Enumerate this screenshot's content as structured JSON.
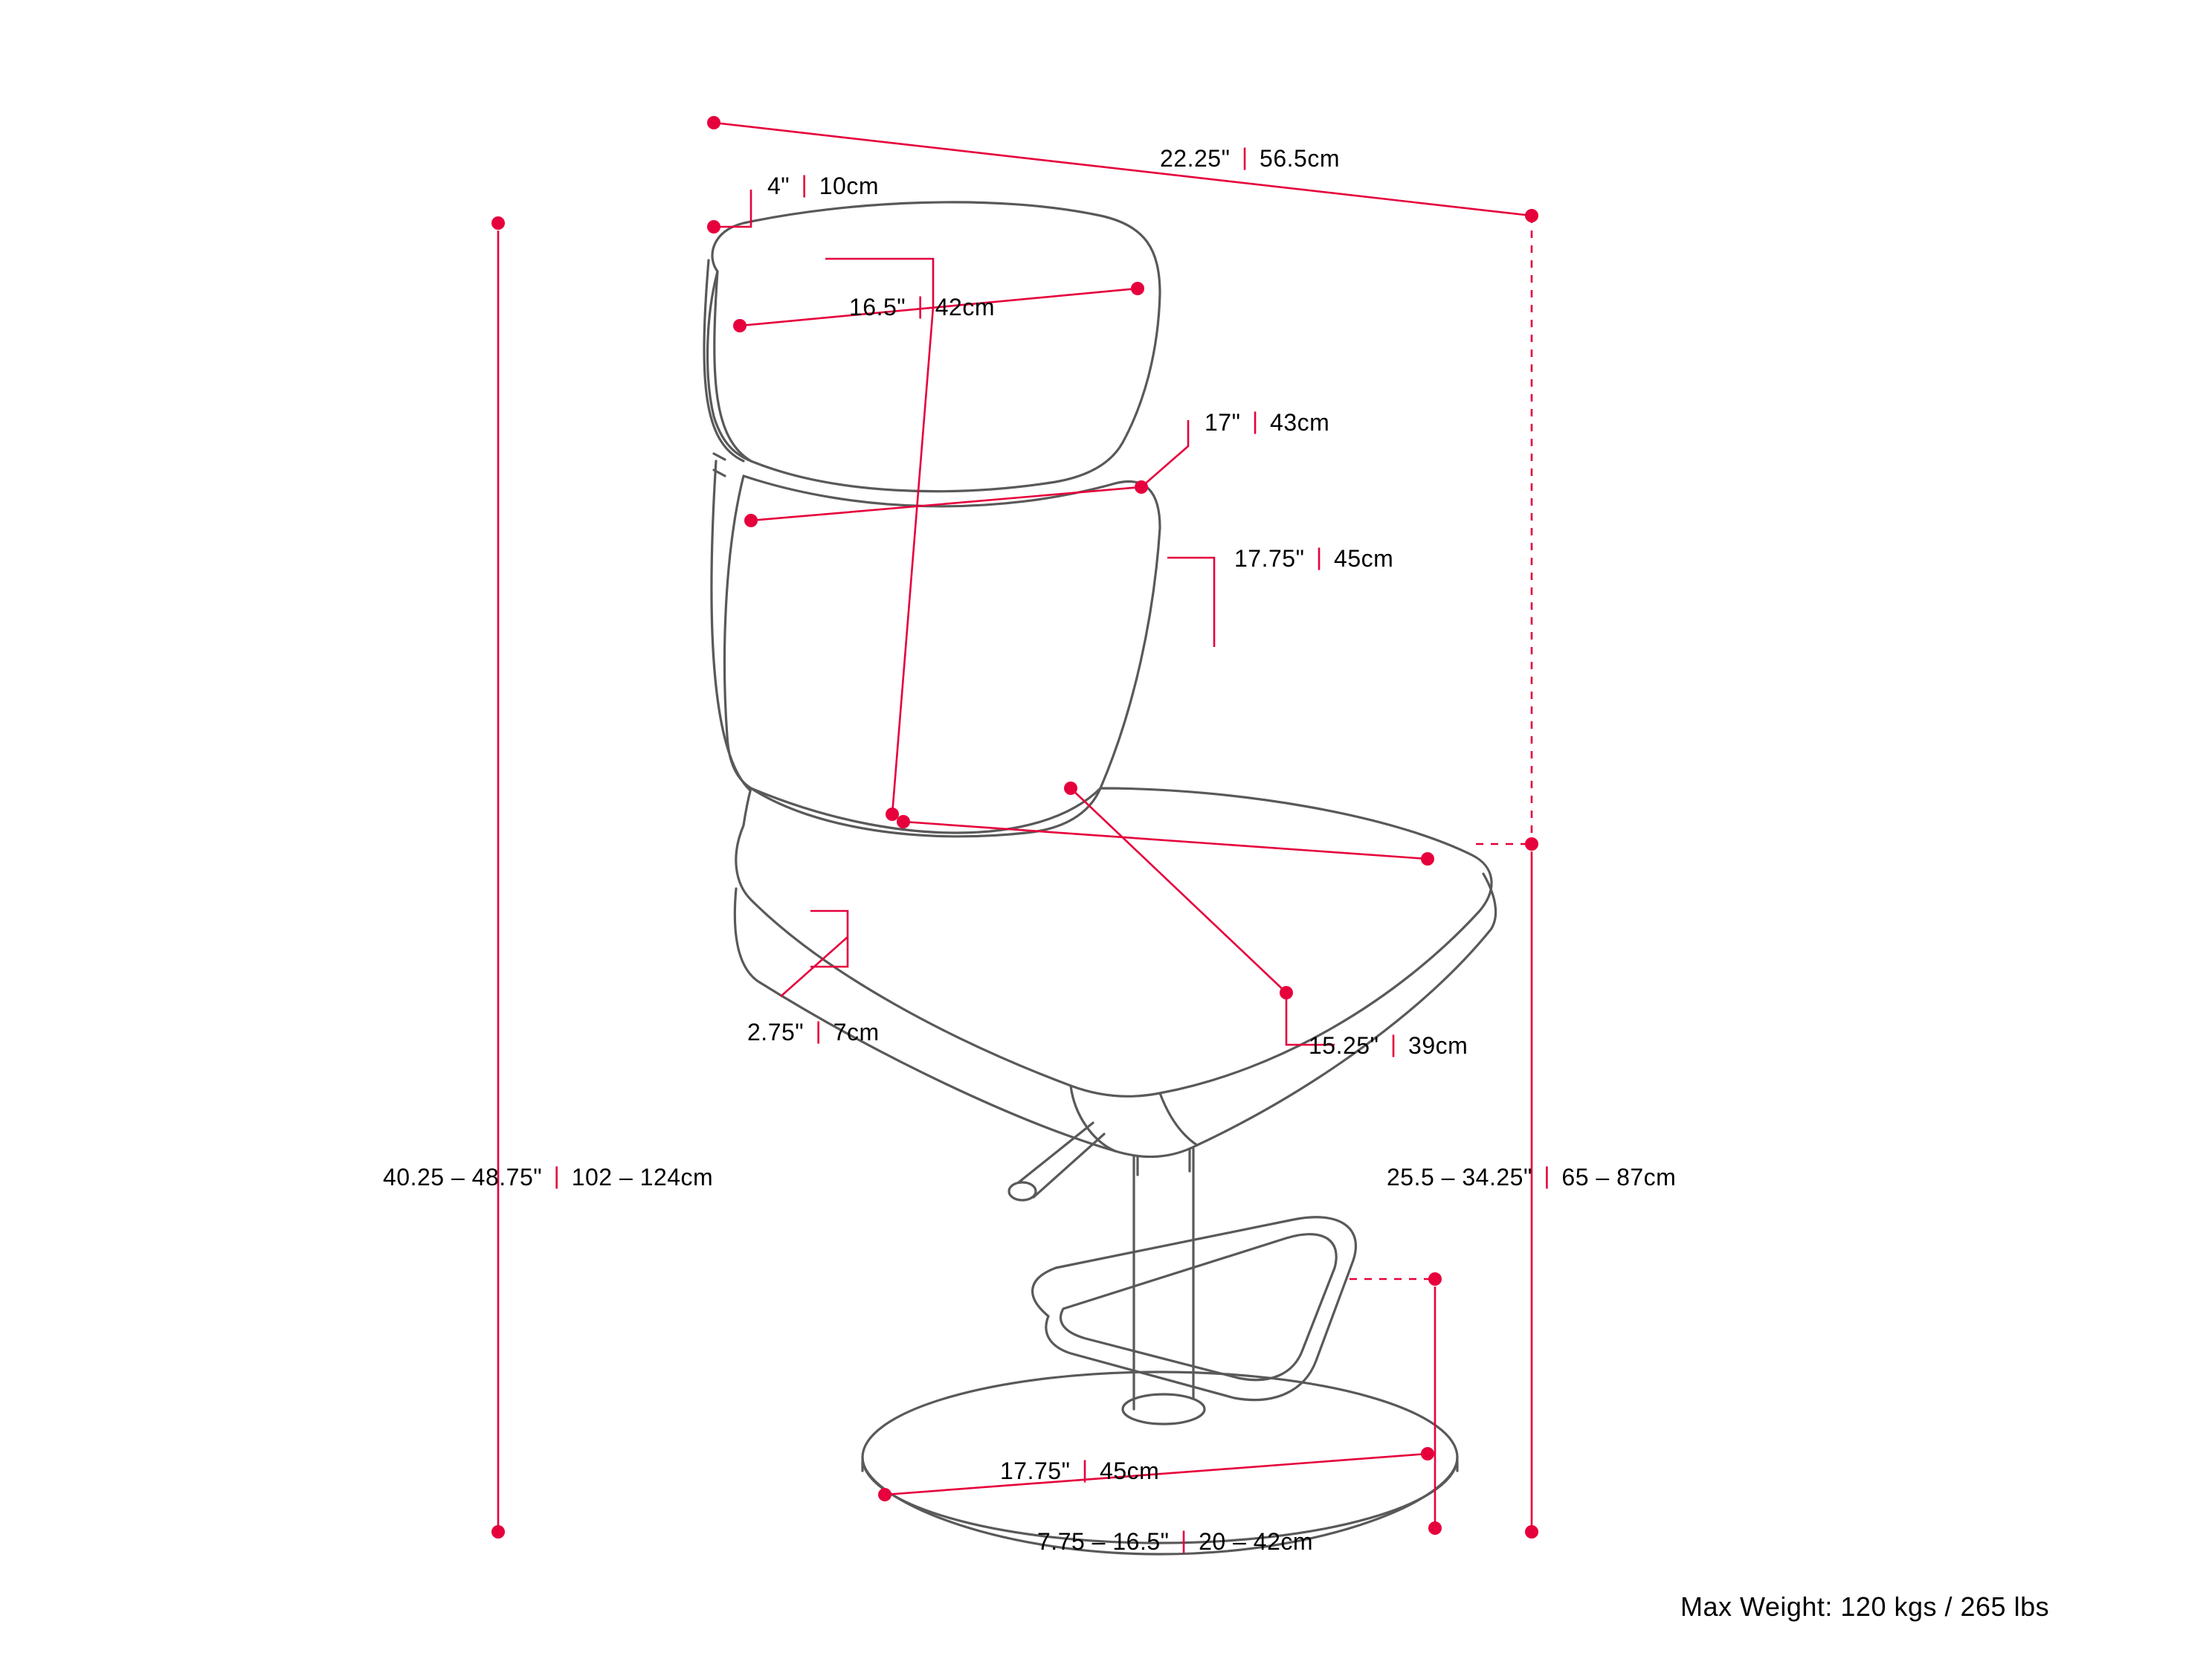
{
  "colors": {
    "background": "#ffffff",
    "outline": "#595959",
    "dimension": "#e6003c",
    "text": "#000000",
    "separator": "#e6003c"
  },
  "stroke": {
    "outline_width": 3.2,
    "dimension_width": 2.6,
    "dashed_width": 2.6,
    "dash_pattern": "10 10"
  },
  "typography": {
    "label_fontsize": 32,
    "footer_fontsize": 36,
    "weight": "400"
  },
  "marker": {
    "dot_radius": 9
  },
  "dimensions": {
    "top_width": {
      "in": "22.25\"",
      "cm": "56.5cm"
    },
    "headrest_depth": {
      "in": "4\"",
      "cm": "10cm"
    },
    "back_width": {
      "in": "16.5\"",
      "cm": "42cm"
    },
    "back_mid_width": {
      "in": "17\"",
      "cm": "43cm"
    },
    "seat_depth": {
      "in": "17.75\"",
      "cm": "45cm"
    },
    "seat_thickness": {
      "in": "2.75\"",
      "cm": "7cm"
    },
    "seat_width": {
      "in": "15.25\"",
      "cm": "39cm"
    },
    "overall_height": {
      "in": "40.25 – 48.75\"",
      "cm": "102 – 124cm"
    },
    "seat_height": {
      "in": "25.5 – 34.25\"",
      "cm": "65 – 87cm"
    },
    "base_diameter": {
      "in": "17.75\"",
      "cm": "45cm"
    },
    "footrest_height": {
      "in": "7.75 – 16.5\"",
      "cm": "20 – 42cm"
    }
  },
  "footer": "Max Weight: 120 kgs / 265 lbs"
}
